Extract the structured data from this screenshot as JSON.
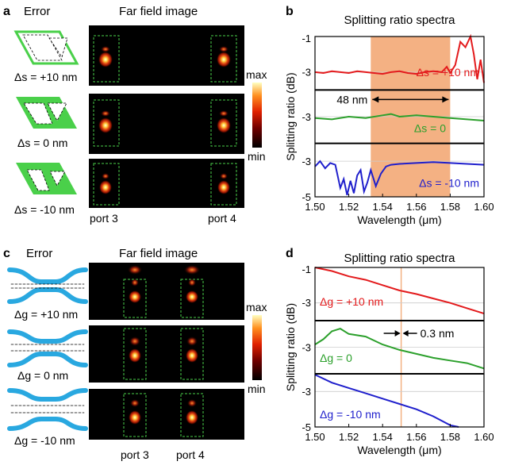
{
  "panel_a": {
    "letter": "a",
    "col1_title": "Error",
    "col2_title": "Far field image",
    "rows": [
      {
        "label": "Δs = +10 nm"
      },
      {
        "label": "Δs = 0 nm"
      },
      {
        "label": "Δs = -10 nm"
      }
    ],
    "port_left": "port 3",
    "port_right": "port 4",
    "colorbar_max": "max",
    "colorbar_min": "min"
  },
  "panel_c": {
    "letter": "c",
    "col1_title": "Error",
    "col2_title": "Far field image",
    "rows": [
      {
        "label": "Δg = +10 nm"
      },
      {
        "label": "Δg = 0 nm"
      },
      {
        "label": "Δg = -10 nm"
      }
    ],
    "port_left": "port 3",
    "port_right": "port 4",
    "colorbar_max": "max",
    "colorbar_min": "min"
  },
  "chart_data": [
    {
      "panel": "b",
      "type": "line",
      "title": "Splitting ratio spectra",
      "xlabel": "Wavelength (μm)",
      "ylabel": "Splitting ratio (dB)",
      "xlim": [
        1.5,
        1.6
      ],
      "x_ticks": [
        "1.50",
        "1.52",
        "1.54",
        "1.56",
        "1.58",
        "1.60"
      ],
      "y_ticks": [
        "-1",
        "-3",
        "-3",
        "-3",
        "-5"
      ],
      "highlight_band": {
        "from": 1.533,
        "to": 1.58,
        "color": "#f4b183"
      },
      "annotation": "48 nm",
      "series": [
        {
          "name": "Δs = +10 nm",
          "color": "#e31a1c",
          "ylim": [
            -4,
            -1
          ],
          "points": [
            [
              1.5,
              -3.0
            ],
            [
              1.505,
              -3.05
            ],
            [
              1.51,
              -2.95
            ],
            [
              1.515,
              -3.0
            ],
            [
              1.52,
              -3.05
            ],
            [
              1.525,
              -2.95
            ],
            [
              1.53,
              -3.0
            ],
            [
              1.535,
              -3.05
            ],
            [
              1.54,
              -3.1
            ],
            [
              1.545,
              -3.0
            ],
            [
              1.55,
              -2.95
            ],
            [
              1.555,
              -3.05
            ],
            [
              1.56,
              -3.1
            ],
            [
              1.565,
              -3.0
            ],
            [
              1.57,
              -2.95
            ],
            [
              1.575,
              -3.0
            ],
            [
              1.578,
              -2.7
            ],
            [
              1.58,
              -3.05
            ],
            [
              1.583,
              -2.6
            ],
            [
              1.586,
              -1.3
            ],
            [
              1.589,
              -1.6
            ],
            [
              1.592,
              -1.0
            ],
            [
              1.594,
              -2.0
            ],
            [
              1.596,
              -3.4
            ],
            [
              1.598,
              -2.3
            ],
            [
              1.6,
              -3.6
            ]
          ]
        },
        {
          "name": "Δs = 0",
          "color": "#2ca02c",
          "ylim": [
            -4,
            -2
          ],
          "points": [
            [
              1.5,
              -3.05
            ],
            [
              1.51,
              -3.1
            ],
            [
              1.52,
              -3.0
            ],
            [
              1.53,
              -3.05
            ],
            [
              1.54,
              -2.95
            ],
            [
              1.545,
              -2.9
            ],
            [
              1.55,
              -3.0
            ],
            [
              1.56,
              -2.95
            ],
            [
              1.57,
              -3.0
            ],
            [
              1.58,
              -3.05
            ],
            [
              1.59,
              -3.1
            ],
            [
              1.6,
              -3.15
            ]
          ]
        },
        {
          "name": "Δs = -10 nm",
          "color": "#1f1fcc",
          "ylim": [
            -5,
            -2
          ],
          "points": [
            [
              1.5,
              -3.3
            ],
            [
              1.503,
              -3.0
            ],
            [
              1.506,
              -3.4
            ],
            [
              1.509,
              -3.1
            ],
            [
              1.512,
              -3.2
            ],
            [
              1.515,
              -4.5
            ],
            [
              1.517,
              -4.0
            ],
            [
              1.519,
              -4.9
            ],
            [
              1.521,
              -4.1
            ],
            [
              1.523,
              -4.8
            ],
            [
              1.525,
              -3.8
            ],
            [
              1.527,
              -3.5
            ],
            [
              1.529,
              -4.7
            ],
            [
              1.531,
              -4.2
            ],
            [
              1.533,
              -3.5
            ],
            [
              1.536,
              -4.4
            ],
            [
              1.539,
              -3.7
            ],
            [
              1.542,
              -3.3
            ],
            [
              1.545,
              -3.2
            ],
            [
              1.55,
              -3.15
            ],
            [
              1.56,
              -3.1
            ],
            [
              1.57,
              -3.05
            ],
            [
              1.58,
              -3.1
            ],
            [
              1.59,
              -3.15
            ],
            [
              1.6,
              -3.2
            ]
          ]
        }
      ]
    },
    {
      "panel": "d",
      "type": "line",
      "title": "Splitting ratio spectra",
      "xlabel": "Wavelength (μm)",
      "ylabel": "Splitting ratio (dB)",
      "xlim": [
        1.5,
        1.6
      ],
      "x_ticks": [
        "1.50",
        "1.52",
        "1.54",
        "1.56",
        "1.58",
        "1.60"
      ],
      "y_ticks": [
        "-1",
        "-3",
        "-3",
        "-3",
        "-5"
      ],
      "marker_line": {
        "x": 1.551,
        "color": "#f4b183"
      },
      "annotation": "0.3 nm",
      "series": [
        {
          "name": "Δg = +10 nm",
          "color": "#e31a1c",
          "ylim": [
            -4,
            -1
          ],
          "points": [
            [
              1.5,
              -1.0
            ],
            [
              1.51,
              -1.2
            ],
            [
              1.52,
              -1.5
            ],
            [
              1.53,
              -1.7
            ],
            [
              1.54,
              -2.0
            ],
            [
              1.55,
              -2.3
            ],
            [
              1.56,
              -2.5
            ],
            [
              1.57,
              -2.75
            ],
            [
              1.58,
              -3.0
            ],
            [
              1.59,
              -3.3
            ],
            [
              1.6,
              -3.6
            ]
          ]
        },
        {
          "name": "Δg = 0",
          "color": "#2ca02c",
          "ylim": [
            -4,
            -2
          ],
          "points": [
            [
              1.5,
              -2.9
            ],
            [
              1.505,
              -2.7
            ],
            [
              1.51,
              -2.4
            ],
            [
              1.515,
              -2.3
            ],
            [
              1.52,
              -2.5
            ],
            [
              1.53,
              -2.6
            ],
            [
              1.54,
              -2.9
            ],
            [
              1.55,
              -3.1
            ],
            [
              1.56,
              -3.25
            ],
            [
              1.57,
              -3.4
            ],
            [
              1.58,
              -3.5
            ],
            [
              1.59,
              -3.6
            ],
            [
              1.6,
              -3.8
            ]
          ]
        },
        {
          "name": "Δg = -10 nm",
          "color": "#1f1fcc",
          "ylim": [
            -5,
            -2
          ],
          "points": [
            [
              1.5,
              -2.05
            ],
            [
              1.51,
              -2.5
            ],
            [
              1.52,
              -2.8
            ],
            [
              1.53,
              -3.1
            ],
            [
              1.54,
              -3.4
            ],
            [
              1.55,
              -3.7
            ],
            [
              1.56,
              -4.0
            ],
            [
              1.57,
              -4.4
            ],
            [
              1.58,
              -4.9
            ],
            [
              1.585,
              -5.0
            ]
          ]
        }
      ]
    }
  ]
}
